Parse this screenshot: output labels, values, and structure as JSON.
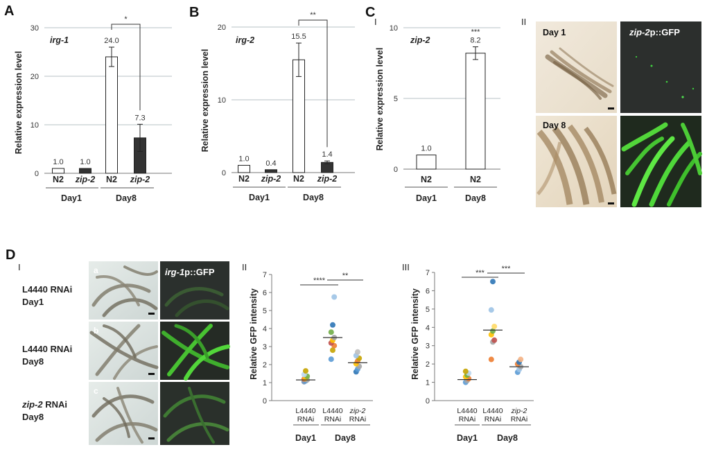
{
  "figure": {
    "panel_labels": {
      "A": "A",
      "B": "B",
      "C": "C",
      "D": "D"
    },
    "sub_labels": {
      "c_one": "I",
      "c_two": "II",
      "d_one": "I",
      "d_two": "II",
      "d_three": "III"
    },
    "y_label_expression": "Relative expression level",
    "y_label_gfp": "Relative GFP intensity",
    "categories": {
      "n2": "N2",
      "zip2": "zip-2",
      "day1": "Day1",
      "day8": "Day8"
    },
    "micro_c": {
      "day1": "Day 1",
      "day8": "Day 8",
      "reporter_prefix": "zip-2",
      "reporter_suffix": "p::GFP"
    },
    "micro_d": {
      "rows": [
        {
          "line1": "L4440 RNAi",
          "line2": "Day1",
          "letter": "a"
        },
        {
          "line1": "L4440 RNAi",
          "line2": "Day8",
          "letter": "b"
        },
        {
          "line1_italic": "zip-2",
          "line1_rest": " RNAi",
          "line2": "Day8",
          "letter": "c"
        }
      ],
      "reporter_prefix": "irg-1",
      "reporter_suffix": "p::GFP"
    },
    "scatter_x": {
      "l4440": "L4440",
      "rnai": "RNAi",
      "zip2": "zip-2"
    }
  },
  "chart_data": [
    {
      "type": "bar",
      "panel": "A",
      "gene": "irg-1",
      "categories": [
        "N2 Day1",
        "zip-2 Day1",
        "N2 Day8",
        "zip-2 Day8"
      ],
      "values": [
        1.0,
        1.0,
        24.0,
        7.3
      ],
      "value_labels": [
        "1.0",
        "1.0",
        "24.0",
        "7.3"
      ],
      "errors": [
        0,
        0,
        2.0,
        2.8
      ],
      "fills": [
        "#ffffff",
        "#333333",
        "#ffffff",
        "#333333"
      ],
      "ylim": [
        0,
        30
      ],
      "yticks": [
        0,
        10,
        20,
        30
      ],
      "significance": [
        {
          "from": 2,
          "to": 3,
          "label": "*"
        }
      ]
    },
    {
      "type": "bar",
      "panel": "B",
      "gene": "irg-2",
      "categories": [
        "N2 Day1",
        "zip-2 Day1",
        "N2 Day8",
        "zip-2 Day8"
      ],
      "values": [
        1.0,
        0.4,
        15.5,
        1.4
      ],
      "value_labels": [
        "1.0",
        "0.4",
        "15.5",
        "1.4"
      ],
      "errors": [
        0,
        0,
        2.3,
        0.2
      ],
      "fills": [
        "#ffffff",
        "#333333",
        "#ffffff",
        "#333333"
      ],
      "ylim": [
        0,
        20
      ],
      "yticks": [
        0,
        10,
        20
      ],
      "significance": [
        {
          "from": 2,
          "to": 3,
          "label": "**"
        }
      ]
    },
    {
      "type": "bar",
      "panel": "C-I",
      "gene": "zip-2",
      "categories": [
        "N2 Day1",
        "N2 Day8"
      ],
      "values": [
        1.0,
        8.2
      ],
      "value_labels": [
        "1.0",
        "8.2"
      ],
      "errors": [
        0,
        0.45
      ],
      "fills": [
        "#ffffff",
        "#ffffff"
      ],
      "ylim": [
        0,
        10
      ],
      "yticks": [
        0,
        5,
        10
      ],
      "bar_annotation": {
        "index": 1,
        "label": "***"
      }
    },
    {
      "type": "scatter",
      "panel": "D-II",
      "groups": [
        {
          "name": "L4440 RNAi Day1",
          "mean": 1.15,
          "points": [
            1.05,
            1.1,
            1.15,
            1.2,
            1.25,
            1.35,
            1.45,
            1.65
          ],
          "colors": [
            "#6e8fb5",
            "#5b9bd5",
            "#a5a5a5",
            "#ed7d31",
            "#ffc000",
            "#70ad47",
            "#bdd7ee",
            "#c5a300"
          ]
        },
        {
          "name": "L4440 RNAi Day8",
          "mean": 3.5,
          "points": [
            2.3,
            2.8,
            3.05,
            3.2,
            3.35,
            3.5,
            3.8,
            4.2,
            5.75
          ],
          "colors": [
            "#5b9bd5",
            "#c5a300",
            "#ed7d31",
            "#c0504d",
            "#ffc000",
            "#a5a5a5",
            "#70ad47",
            "#2e75b6",
            "#9dc3e6"
          ]
        },
        {
          "name": "zip-2 RNAi Day8",
          "mean": 2.1,
          "points": [
            1.6,
            1.75,
            1.9,
            2.05,
            2.2,
            2.35,
            2.5,
            2.7
          ],
          "colors": [
            "#2e75b6",
            "#5b9bd5",
            "#a5a5a5",
            "#ffc000",
            "#ed7d31",
            "#c5a300",
            "#9dc3e6",
            "#bfbfbf"
          ]
        }
      ],
      "ylim": [
        0,
        7
      ],
      "yticks": [
        0,
        1,
        2,
        3,
        4,
        5,
        6,
        7
      ],
      "significance": [
        {
          "from": 0,
          "to": 1,
          "label": "****"
        },
        {
          "from": 1,
          "to": 2,
          "label": "**"
        }
      ]
    },
    {
      "type": "scatter",
      "panel": "D-III",
      "groups": [
        {
          "name": "L4440 RNAi Day1",
          "mean": 1.15,
          "points": [
            1.0,
            1.1,
            1.2,
            1.3,
            1.4,
            1.5,
            1.6
          ],
          "colors": [
            "#5b9bd5",
            "#a5a5a5",
            "#ed7d31",
            "#ffc000",
            "#70ad47",
            "#bdd7ee",
            "#c5a300"
          ]
        },
        {
          "name": "L4440 RNAi Day8",
          "mean": 3.85,
          "points": [
            2.25,
            3.2,
            3.3,
            3.6,
            3.8,
            4.05,
            4.95,
            6.5
          ],
          "colors": [
            "#ed7d31",
            "#a5a5a5",
            "#c0504d",
            "#ffc000",
            "#70ad47",
            "#ffd966",
            "#9dc3e6",
            "#2e75b6"
          ]
        },
        {
          "name": "zip-2 RNAi Day8",
          "mean": 1.85,
          "points": [
            1.55,
            1.7,
            1.85,
            2.0,
            2.1,
            2.25
          ],
          "colors": [
            "#5b9bd5",
            "#9dc3e6",
            "#a5a5a5",
            "#ed7d31",
            "#2e75b6",
            "#f4b183"
          ]
        }
      ],
      "ylim": [
        0,
        7
      ],
      "yticks": [
        0,
        1,
        2,
        3,
        4,
        5,
        6,
        7
      ],
      "significance": [
        {
          "from": 0,
          "to": 1,
          "label": "***"
        },
        {
          "from": 1,
          "to": 2,
          "label": "***"
        }
      ]
    }
  ]
}
